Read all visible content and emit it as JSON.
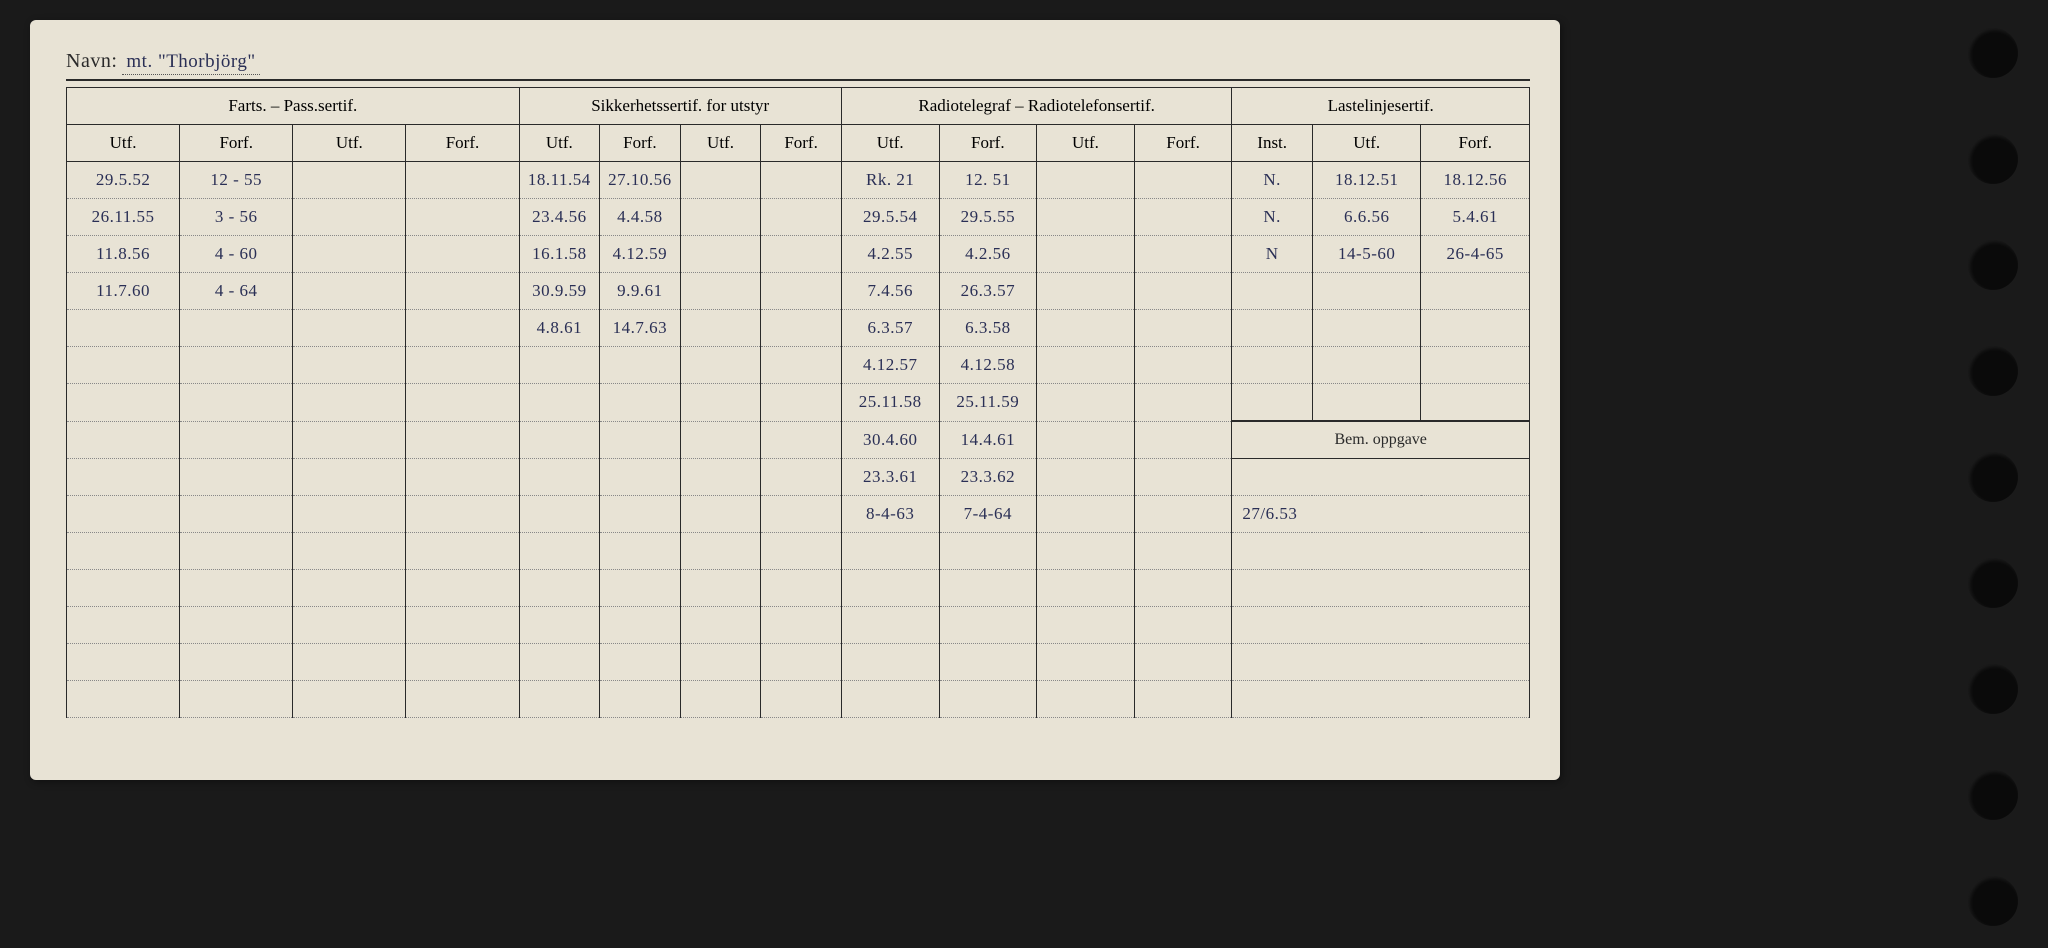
{
  "page_bg": "#1a1a1a",
  "card_bg": "#e8e3d5",
  "ink": "#2a2a2a",
  "hand_ink": "#2a2f55",
  "navn_label": "Navn:",
  "navn_value": "mt. \"Thorbjörg\"",
  "groups": {
    "farts": "Farts. – Pass.sertif.",
    "sikker": "Sikkerhetssertif. for utstyr",
    "radio": "Radiotelegraf – Radiotelefonsertif.",
    "laste": "Lastelinjesertif."
  },
  "sub": {
    "utf": "Utf.",
    "forf": "Forf.",
    "inst": "Inst."
  },
  "bem_label": "Bem. oppgave",
  "rows": [
    {
      "f_utf": "29.5.52",
      "f_forf": "12 - 55",
      "s_utf": "18.11.54",
      "s_forf": "27.10.56",
      "r_utf": "Rk. 21",
      "r_forf": "12. 51",
      "l_inst": "N.",
      "l_utf": "18.12.51",
      "l_forf": "18.12.56"
    },
    {
      "f_utf": "26.11.55",
      "f_forf": "3 - 56",
      "s_utf": "23.4.56",
      "s_forf": "4.4.58",
      "r_utf": "29.5.54",
      "r_forf": "29.5.55",
      "l_inst": "N.",
      "l_utf": "6.6.56",
      "l_forf": "5.4.61"
    },
    {
      "f_utf": "11.8.56",
      "f_forf": "4 - 60",
      "s_utf": "16.1.58",
      "s_forf": "4.12.59",
      "r_utf": "4.2.55",
      "r_forf": "4.2.56",
      "l_inst": "N",
      "l_utf": "14-5-60",
      "l_forf": "26-4-65"
    },
    {
      "f_utf": "11.7.60",
      "f_forf": "4 - 64",
      "s_utf": "30.9.59",
      "s_forf": "9.9.61",
      "r_utf": "7.4.56",
      "r_forf": "26.3.57",
      "l_inst": "",
      "l_utf": "",
      "l_forf": ""
    },
    {
      "f_utf": "",
      "f_forf": "",
      "s_utf": "4.8.61",
      "s_forf": "14.7.63",
      "r_utf": "6.3.57",
      "r_forf": "6.3.58",
      "l_inst": "",
      "l_utf": "",
      "l_forf": ""
    },
    {
      "f_utf": "",
      "f_forf": "",
      "s_utf": "",
      "s_forf": "",
      "r_utf": "4.12.57",
      "r_forf": "4.12.58",
      "l_inst": "",
      "l_utf": "",
      "l_forf": ""
    },
    {
      "f_utf": "",
      "f_forf": "",
      "s_utf": "",
      "s_forf": "",
      "r_utf": "25.11.58",
      "r_forf": "25.11.59",
      "l_inst": "",
      "l_utf": "",
      "l_forf": ""
    }
  ],
  "rows2": [
    {
      "r_utf": "30.4.60",
      "r_forf": "14.4.61"
    },
    {
      "r_utf": "23.3.61",
      "r_forf": "23.3.62",
      "bem": ""
    },
    {
      "r_utf": "8-4-63",
      "r_forf": "7-4-64",
      "bem": "27/6.53"
    },
    {
      "r_utf": "",
      "r_forf": "",
      "bem": ""
    },
    {
      "r_utf": "",
      "r_forf": "",
      "bem": ""
    },
    {
      "r_utf": "",
      "r_forf": "",
      "bem": ""
    },
    {
      "r_utf": "",
      "r_forf": "",
      "bem": ""
    },
    {
      "r_utf": "",
      "r_forf": "",
      "bem": ""
    }
  ]
}
